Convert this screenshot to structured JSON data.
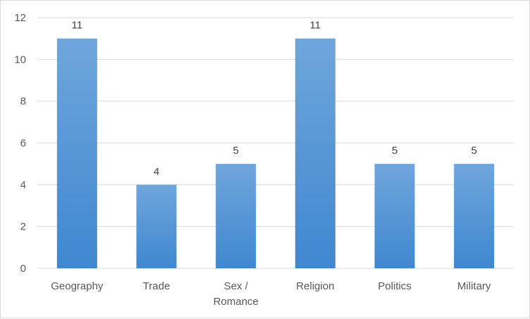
{
  "chart_data": {
    "type": "bar",
    "categories": [
      "Geography",
      "Trade",
      "Sex / Romance",
      "Religion",
      "Politics",
      "Military"
    ],
    "category_lines": [
      [
        "Geography"
      ],
      [
        "Trade"
      ],
      [
        "Sex /",
        "Romance"
      ],
      [
        "Religion"
      ],
      [
        "Politics"
      ],
      [
        "Military"
      ]
    ],
    "values": [
      11,
      4,
      5,
      11,
      5,
      5
    ],
    "ylim": [
      0,
      12
    ],
    "yticks": [
      0,
      2,
      4,
      6,
      8,
      10,
      12
    ],
    "grid": true,
    "data_labels": true,
    "legend": "none",
    "colors": {
      "bar_top": "#6fa6dc",
      "bar_bottom": "#3f87cf",
      "grid": "#d9d9d9"
    }
  }
}
